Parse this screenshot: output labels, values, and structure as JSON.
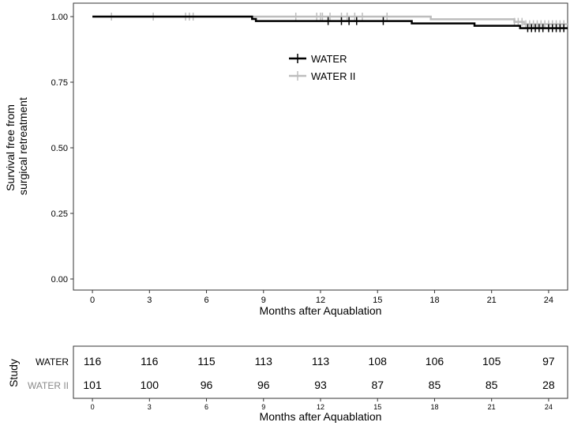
{
  "chart_data": [
    {
      "type": "line",
      "title": "",
      "step": true,
      "xlabel": "Months after Aquablation",
      "ylabel_lines": [
        "Survival free from",
        "surgical retreatment"
      ],
      "xlim": [
        -1,
        25
      ],
      "ylim": [
        0,
        1
      ],
      "xticks": [
        0,
        3,
        6,
        9,
        12,
        15,
        18,
        21,
        24
      ],
      "yticks": [
        "0.00",
        "0.25",
        "0.50",
        "0.75",
        "1.00"
      ],
      "grid": false,
      "legend_position": "center-right, inside plot",
      "series": [
        {
          "name": "WATER",
          "color": "#000000",
          "steps": [
            [
              0,
              1.0
            ],
            [
              8.4,
              0.991
            ],
            [
              8.6,
              0.983
            ],
            [
              16.8,
              0.974
            ],
            [
              20.1,
              0.965
            ],
            [
              22.5,
              0.956
            ],
            [
              25,
              0.956
            ]
          ],
          "censor_times": [
            12.4,
            13.1,
            13.5,
            13.9,
            15.3,
            22.9,
            23.1,
            23.3,
            23.5,
            23.7,
            24.0,
            24.2,
            24.4,
            24.6,
            24.8
          ]
        },
        {
          "name": "WATER II",
          "color": "#bdbdbd",
          "steps": [
            [
              0,
              1.0
            ],
            [
              17.8,
              0.99
            ],
            [
              22.2,
              0.98
            ],
            [
              22.7,
              0.971
            ],
            [
              25,
              0.971
            ]
          ],
          "censor_times": [
            1.0,
            3.2,
            4.9,
            5.1,
            5.3,
            10.7,
            11.8,
            12.0,
            12.1,
            12.5,
            13.1,
            13.4,
            13.8,
            14.2,
            15.5,
            22.2,
            22.4,
            22.6,
            22.8,
            23.0,
            23.2,
            23.4,
            23.6,
            23.8,
            24.0,
            24.2,
            24.4,
            24.6,
            24.8
          ]
        }
      ]
    },
    {
      "type": "table",
      "title": "",
      "ylabel": "Study",
      "xlabel": "Months after Aquablation",
      "xticks": [
        0,
        3,
        6,
        9,
        12,
        15,
        18,
        21,
        24
      ],
      "rows": [
        {
          "name": "WATER",
          "color": "#000000",
          "values": [
            116,
            116,
            115,
            113,
            113,
            108,
            106,
            105,
            97
          ]
        },
        {
          "name": "WATER II",
          "color": "#8a8a8a",
          "values": [
            101,
            100,
            96,
            96,
            93,
            87,
            85,
            85,
            28
          ]
        }
      ]
    }
  ]
}
